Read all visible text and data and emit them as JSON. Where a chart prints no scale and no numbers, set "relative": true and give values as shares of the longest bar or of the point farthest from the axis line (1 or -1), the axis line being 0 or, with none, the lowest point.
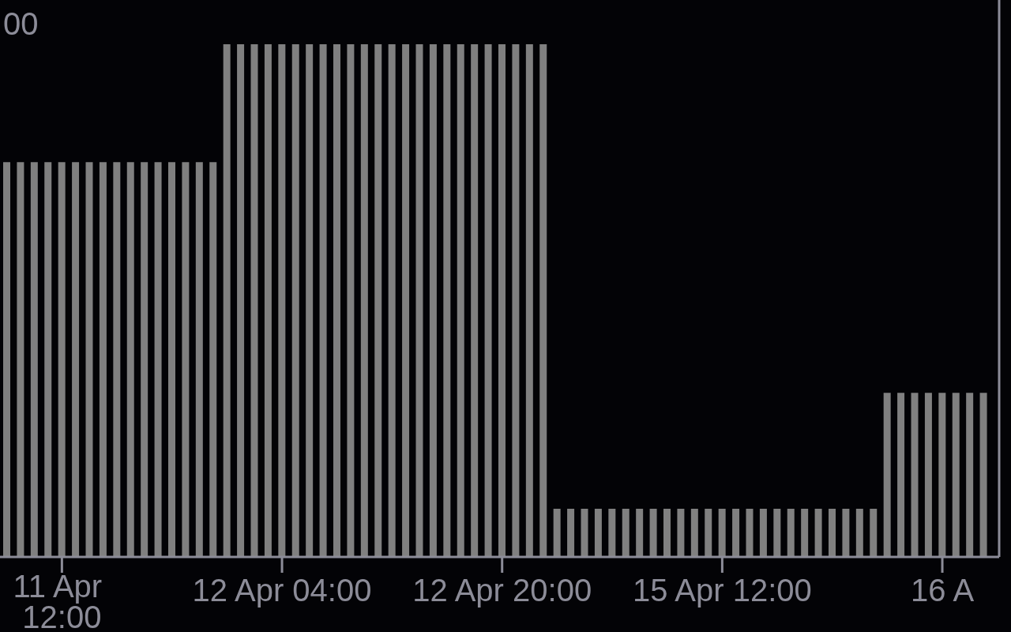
{
  "chart_data": {
    "type": "bar",
    "relative": true,
    "color": "#808080",
    "categories": [
      null,
      null,
      null,
      null,
      "11 Apr 12:00",
      null,
      null,
      null,
      null,
      null,
      null,
      null,
      null,
      null,
      null,
      null,
      null,
      null,
      null,
      null,
      "12 Apr 04:00",
      null,
      null,
      null,
      null,
      null,
      null,
      null,
      null,
      null,
      null,
      null,
      null,
      null,
      null,
      null,
      "12 Apr 20:00",
      null,
      null,
      null,
      null,
      null,
      null,
      null,
      null,
      null,
      null,
      null,
      null,
      null,
      null,
      null,
      "15 Apr 12:00",
      null,
      null,
      null,
      null,
      null,
      null,
      null,
      null,
      null,
      null,
      null,
      null,
      null,
      null,
      null,
      "16 A",
      null,
      null,
      null
    ],
    "values": [
      0.77,
      0.77,
      0.77,
      0.77,
      0.77,
      0.77,
      0.77,
      0.77,
      0.77,
      0.77,
      0.77,
      0.77,
      0.77,
      0.77,
      0.77,
      0.77,
      1,
      1,
      1,
      1,
      1,
      1,
      1,
      1,
      1,
      1,
      1,
      1,
      1,
      1,
      1,
      1,
      1,
      1,
      1,
      1,
      1,
      1,
      1,
      1,
      0.094,
      0.094,
      0.094,
      0.094,
      0.094,
      0.094,
      0.094,
      0.094,
      0.094,
      0.094,
      0.094,
      0.094,
      0.094,
      0.094,
      0.094,
      0.094,
      0.094,
      0.094,
      0.094,
      0.094,
      0.094,
      0.094,
      0.094,
      0.094,
      0.32,
      0.32,
      0.32,
      0.32,
      0.32,
      0.32,
      0.32,
      0.32
    ],
    "annotations": [
      "00"
    ]
  }
}
